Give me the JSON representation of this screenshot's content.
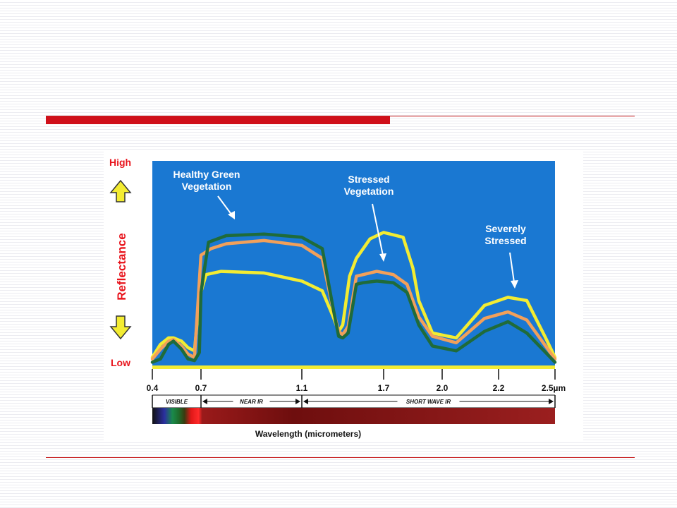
{
  "slide": {
    "accent_color": "#d0101a",
    "background_color": "#ffffff"
  },
  "chart_data": {
    "type": "line",
    "title": "",
    "ylabel": "Reflectance",
    "y_high_label": "High",
    "y_low_label": "Low",
    "xlabel": "Wavelength (micrometers)",
    "x_ticks": [
      "0.4",
      "0.7",
      "1.1",
      "1.7",
      "2.0",
      "2.2",
      "2.5µm"
    ],
    "bands": [
      {
        "label": "VISIBLE",
        "from": 0.4,
        "to": 0.7
      },
      {
        "label": "NEAR IR",
        "from": 0.7,
        "to": 1.1
      },
      {
        "label": "SHORT WAVE IR",
        "from": 1.1,
        "to": 2.5
      }
    ],
    "plot_background": "#1a78d2",
    "series": [
      {
        "name": "Healthy Green Vegetation",
        "color": "#1f6b3a",
        "x": [
          0.4,
          0.45,
          0.5,
          0.53,
          0.58,
          0.62,
          0.66,
          0.69,
          0.7,
          0.73,
          0.8,
          0.95,
          1.1,
          1.25,
          1.33,
          1.37,
          1.4,
          1.44,
          1.5,
          1.55,
          1.65,
          1.75,
          1.82,
          1.88,
          1.95,
          2.05,
          2.15,
          2.25,
          2.35,
          2.45,
          2.5
        ],
        "y": [
          2,
          4,
          13,
          15,
          10,
          4,
          3,
          8,
          45,
          76,
          80,
          81,
          79,
          72,
          35,
          18,
          17,
          20,
          50,
          51,
          52,
          51,
          45,
          25,
          12,
          9,
          21,
          27,
          20,
          8,
          2
        ]
      },
      {
        "name": "Stressed Vegetation",
        "color": "#f2a05a",
        "x": [
          0.4,
          0.45,
          0.5,
          0.53,
          0.58,
          0.62,
          0.66,
          0.7,
          0.74,
          0.8,
          0.95,
          1.1,
          1.25,
          1.33,
          1.37,
          1.4,
          1.44,
          1.5,
          1.55,
          1.65,
          1.75,
          1.82,
          1.88,
          1.95,
          2.05,
          2.15,
          2.25,
          2.35,
          2.45,
          2.5
        ],
        "y": [
          4,
          10,
          15,
          16,
          12,
          7,
          5,
          68,
          72,
          75,
          77,
          74,
          66,
          34,
          21,
          19,
          24,
          55,
          56,
          58,
          56,
          50,
          30,
          18,
          14,
          29,
          33,
          28,
          12,
          4
        ]
      },
      {
        "name": "Severely Stressed",
        "color": "#f3ec32",
        "x": [
          0.4,
          0.45,
          0.5,
          0.53,
          0.58,
          0.62,
          0.66,
          0.69,
          0.72,
          0.78,
          0.95,
          1.1,
          1.25,
          1.33,
          1.37,
          1.4,
          1.45,
          1.5,
          1.6,
          1.7,
          1.8,
          1.85,
          1.88,
          1.95,
          2.05,
          2.15,
          2.25,
          2.35,
          2.45,
          2.5
        ],
        "y": [
          5,
          13,
          17,
          17,
          15,
          11,
          9,
          42,
          56,
          58,
          57,
          52,
          46,
          30,
          21,
          25,
          55,
          66,
          78,
          82,
          79,
          60,
          40,
          20,
          17,
          37,
          42,
          40,
          17,
          5
        ]
      }
    ]
  }
}
